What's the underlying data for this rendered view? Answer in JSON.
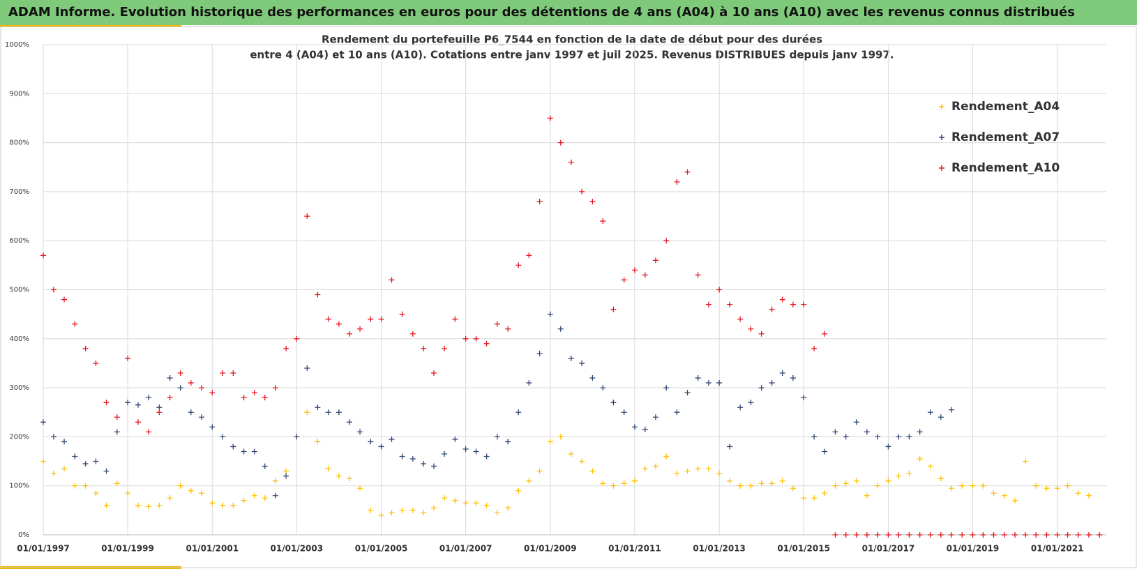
{
  "header": {
    "title": "ADAM Informe. Evolution historique des performances en euros pour des détentions de 4 ans (A04) à 10 ans (A10) avec les revenus connus distribués"
  },
  "chart_data": {
    "type": "scatter",
    "title": [
      "Rendement du portefeuille P6_7544 en fonction de la date de début pour des durées",
      "entre 4 (A04) et 10 ans (A10). Cotations  entre janv 1997 et juil 2025. Revenus DISTRIBUES depuis janv 1997."
    ],
    "x": [
      "1997-01-01",
      "1997-04-01",
      "1997-07-01",
      "1997-10-01",
      "1998-01-01",
      "1998-04-01",
      "1998-07-01",
      "1998-10-01",
      "1999-01-01",
      "1999-04-01",
      "1999-07-01",
      "1999-10-01",
      "2000-01-01",
      "2000-04-01",
      "2000-07-01",
      "2000-10-01",
      "2001-01-01",
      "2001-04-01",
      "2001-07-01",
      "2001-10-01",
      "2002-01-01",
      "2002-04-01",
      "2002-07-01",
      "2002-10-01",
      "2003-01-01",
      "2003-04-01",
      "2003-07-01",
      "2003-10-01",
      "2004-01-01",
      "2004-04-01",
      "2004-07-01",
      "2004-10-01",
      "2005-01-01",
      "2005-04-01",
      "2005-07-01",
      "2005-10-01",
      "2006-01-01",
      "2006-04-01",
      "2006-07-01",
      "2006-10-01",
      "2007-01-01",
      "2007-04-01",
      "2007-07-01",
      "2007-10-01",
      "2008-01-01",
      "2008-04-01",
      "2008-07-01",
      "2008-10-01",
      "2009-01-01",
      "2009-04-01",
      "2009-07-01",
      "2009-10-01",
      "2010-01-01",
      "2010-04-01",
      "2010-07-01",
      "2010-10-01",
      "2011-01-01",
      "2011-04-01",
      "2011-07-01",
      "2011-10-01",
      "2012-01-01",
      "2012-04-01",
      "2012-07-01",
      "2012-10-01",
      "2013-01-01",
      "2013-04-01",
      "2013-07-01",
      "2013-10-01",
      "2014-01-01",
      "2014-04-01",
      "2014-07-01",
      "2014-10-01",
      "2015-01-01",
      "2015-04-01",
      "2015-07-01",
      "2015-10-01",
      "2016-01-01",
      "2016-04-01",
      "2016-07-01",
      "2016-10-01",
      "2017-01-01",
      "2017-04-01",
      "2017-07-01",
      "2017-10-01",
      "2018-01-01",
      "2018-04-01",
      "2018-07-01",
      "2018-10-01",
      "2019-01-01",
      "2019-04-01",
      "2019-07-01",
      "2019-10-01",
      "2020-01-01",
      "2020-04-01",
      "2020-07-01",
      "2020-10-01",
      "2021-01-01",
      "2021-04-01",
      "2021-07-01",
      "2021-10-01",
      "2022-01-01"
    ],
    "series": [
      {
        "name": "Rendement_A04",
        "color": "#ffc000",
        "values": [
          150,
          125,
          135,
          100,
          100,
          85,
          60,
          105,
          85,
          60,
          58,
          60,
          75,
          100,
          90,
          85,
          65,
          60,
          60,
          70,
          80,
          75,
          110,
          130,
          200,
          250,
          190,
          135,
          120,
          115,
          95,
          50,
          40,
          45,
          50,
          50,
          45,
          55,
          75,
          70,
          65,
          65,
          60,
          45,
          55,
          90,
          110,
          130,
          190,
          200,
          165,
          150,
          130,
          105,
          100,
          105,
          110,
          135,
          140,
          160,
          125,
          130,
          135,
          135,
          125,
          110,
          100,
          100,
          105,
          105,
          110,
          95,
          75,
          75,
          85,
          100,
          105,
          110,
          80,
          100,
          110,
          120,
          125,
          155,
          140,
          115,
          95,
          100,
          100,
          100,
          85,
          80,
          70,
          150,
          100,
          95,
          95,
          100,
          85,
          80,
          null
        ]
      },
      {
        "name": "Rendement_A07",
        "color": "#2f4470",
        "values": [
          230,
          200,
          190,
          160,
          145,
          150,
          130,
          210,
          270,
          265,
          280,
          260,
          320,
          300,
          250,
          240,
          220,
          200,
          180,
          170,
          170,
          140,
          80,
          120,
          200,
          340,
          260,
          250,
          250,
          230,
          210,
          190,
          180,
          195,
          160,
          155,
          145,
          140,
          165,
          195,
          175,
          170,
          160,
          200,
          190,
          250,
          310,
          370,
          450,
          420,
          360,
          350,
          320,
          300,
          270,
          250,
          220,
          215,
          240,
          300,
          250,
          290,
          320,
          310,
          310,
          180,
          260,
          270,
          300,
          310,
          330,
          320,
          280,
          200,
          170,
          210,
          200,
          230,
          210,
          200,
          180,
          200,
          200,
          210,
          250,
          240,
          255,
          null,
          null,
          null,
          null,
          null,
          null,
          null,
          null,
          null,
          null,
          null,
          null,
          null,
          null
        ]
      },
      {
        "name": "Rendement_A10",
        "color": "#e8141c",
        "values": [
          570,
          500,
          480,
          430,
          380,
          350,
          270,
          240,
          360,
          230,
          210,
          250,
          280,
          330,
          310,
          300,
          290,
          330,
          330,
          280,
          290,
          280,
          300,
          380,
          400,
          650,
          490,
          440,
          430,
          410,
          420,
          440,
          440,
          520,
          450,
          410,
          380,
          330,
          380,
          440,
          400,
          400,
          390,
          430,
          420,
          550,
          570,
          680,
          850,
          800,
          760,
          700,
          680,
          640,
          460,
          520,
          540,
          530,
          560,
          600,
          720,
          740,
          530,
          470,
          500,
          470,
          440,
          420,
          410,
          460,
          480,
          470,
          470,
          380,
          410,
          0,
          0,
          0,
          0,
          0,
          0,
          0,
          0,
          0,
          0,
          0,
          0,
          0,
          0,
          0,
          0,
          0,
          0,
          0,
          0,
          0,
          0,
          0,
          0,
          0,
          0
        ]
      }
    ],
    "xlim": [
      "1997-01-01",
      "2022-03-01"
    ],
    "xticks": [
      {
        "value": "1997-01-01",
        "label": "01/01/1997"
      },
      {
        "value": "1999-01-01",
        "label": "01/01/1999"
      },
      {
        "value": "2001-01-01",
        "label": "01/01/2001"
      },
      {
        "value": "2003-01-01",
        "label": "01/01/2003"
      },
      {
        "value": "2005-01-01",
        "label": "01/01/2005"
      },
      {
        "value": "2007-01-01",
        "label": "01/01/2007"
      },
      {
        "value": "2009-01-01",
        "label": "01/01/2009"
      },
      {
        "value": "2011-01-01",
        "label": "01/01/2011"
      },
      {
        "value": "2013-01-01",
        "label": "01/01/2013"
      },
      {
        "value": "2015-01-01",
        "label": "01/01/2015"
      },
      {
        "value": "2017-01-01",
        "label": "01/01/2017"
      },
      {
        "value": "2019-01-01",
        "label": "01/01/2019"
      },
      {
        "value": "2021-01-01",
        "label": "01/01/2021"
      }
    ],
    "ylim": [
      0,
      1000
    ],
    "yticks": [
      {
        "value": 0,
        "label": "0%"
      },
      {
        "value": 100,
        "label": "100%"
      },
      {
        "value": 200,
        "label": "200%"
      },
      {
        "value": 300,
        "label": "300%"
      },
      {
        "value": 400,
        "label": "400%"
      },
      {
        "value": 500,
        "label": "500%"
      },
      {
        "value": 600,
        "label": "600%"
      },
      {
        "value": 700,
        "label": "700%"
      },
      {
        "value": 800,
        "label": "800%"
      },
      {
        "value": 900,
        "label": "900%"
      },
      {
        "value": 1000,
        "label": "1000%"
      }
    ],
    "grid": true,
    "legend": "right"
  }
}
